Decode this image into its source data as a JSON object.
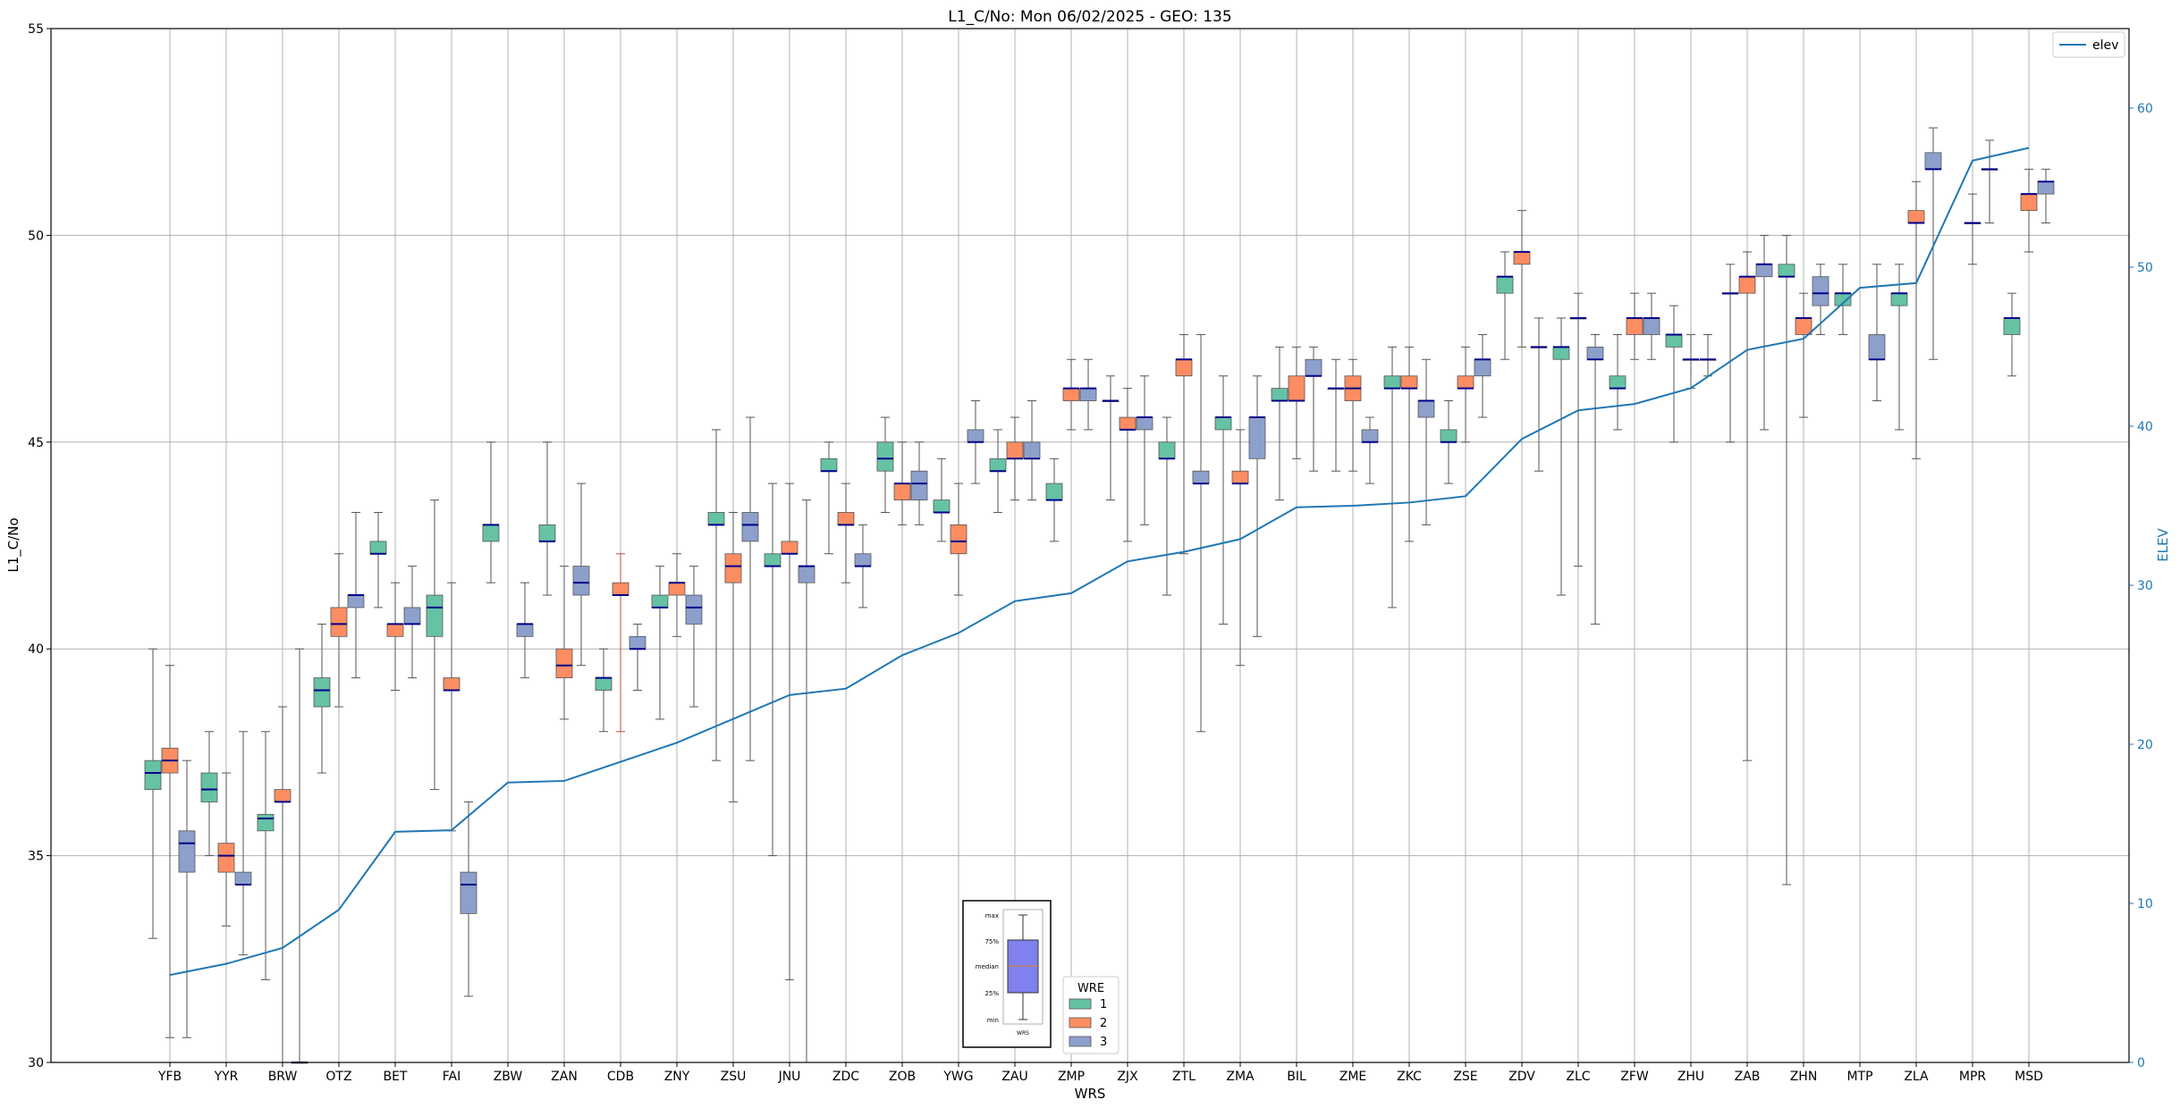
{
  "colors": {
    "wre1": "#66c2a5",
    "wre2": "#fc8d62",
    "wre3": "#8da0cb",
    "elev": "#1f77b4",
    "median": "#00008b",
    "grid": "#b0b0b0",
    "whisker": "#555555",
    "legend_box_fill": "#8080ee"
  },
  "chart_data": {
    "type": "box",
    "title": "L1_C/No: Mon 06/02/2025 - GEO: 135",
    "xlabel": "WRS",
    "ylabel": "L1_C/No",
    "y2label": "ELEV",
    "ylim": [
      30,
      55
    ],
    "y2lim": [
      0,
      65
    ],
    "yticks": [
      30,
      35,
      40,
      45,
      50,
      55
    ],
    "y2ticks": [
      0,
      10,
      20,
      30,
      40,
      50,
      60
    ],
    "grid": true,
    "categories": [
      "YFB",
      "YYR",
      "BRW",
      "OTZ",
      "BET",
      "FAI",
      "ZBW",
      "ZAN",
      "CDB",
      "ZNY",
      "ZSU",
      "JNU",
      "ZDC",
      "ZOB",
      "YWG",
      "ZAU",
      "ZMP",
      "ZJX",
      "ZTL",
      "ZMA",
      "BIL",
      "ZME",
      "ZKC",
      "ZSE",
      "ZDV",
      "ZLC",
      "ZFW",
      "ZHU",
      "ZAB",
      "ZHN",
      "MTP",
      "ZLA",
      "MPR",
      "MSD"
    ],
    "series": [
      {
        "name": "1",
        "boxes": [
          {
            "cat": "YFB",
            "min": 33,
            "q1": 36.6,
            "med": 37,
            "q3": 37.3,
            "max": 40
          },
          {
            "cat": "YYR",
            "min": 35,
            "q1": 36.3,
            "med": 36.6,
            "q3": 37,
            "max": 38
          },
          {
            "cat": "BRW",
            "min": 32,
            "q1": 35.6,
            "med": 35.9,
            "q3": 36,
            "max": 38
          },
          {
            "cat": "OTZ",
            "min": 37,
            "q1": 38.6,
            "med": 39,
            "q3": 39.3,
            "max": 40.6
          },
          {
            "cat": "BET",
            "min": 41,
            "q1": 42.3,
            "med": 42.3,
            "q3": 42.6,
            "max": 43.3
          },
          {
            "cat": "FAI",
            "min": 36.6,
            "q1": 40.3,
            "med": 41,
            "q3": 41.3,
            "max": 43.6
          },
          {
            "cat": "ZBW",
            "min": 41.6,
            "q1": 42.6,
            "med": 43,
            "q3": 43,
            "max": 45
          },
          {
            "cat": "ZAN",
            "min": 41.3,
            "q1": 42.6,
            "med": 42.6,
            "q3": 43,
            "max": 45
          },
          {
            "cat": "CDB",
            "min": 38,
            "q1": 39,
            "med": 39.3,
            "q3": 39.3,
            "max": 40
          },
          {
            "cat": "ZNY",
            "min": 38.3,
            "q1": 41,
            "med": 41,
            "q3": 41.3,
            "max": 42
          },
          {
            "cat": "ZSU",
            "min": 37.3,
            "q1": 43,
            "med": 43,
            "q3": 43.3,
            "max": 45.3
          },
          {
            "cat": "JNU",
            "min": 35,
            "q1": 42,
            "med": 42,
            "q3": 42.3,
            "max": 44
          },
          {
            "cat": "ZDC",
            "min": 42.3,
            "q1": 44.3,
            "med": 44.3,
            "q3": 44.6,
            "max": 45
          },
          {
            "cat": "ZOB",
            "min": 43.3,
            "q1": 44.3,
            "med": 44.6,
            "q3": 45,
            "max": 45.6
          },
          {
            "cat": "YWG",
            "min": 42.6,
            "q1": 43.3,
            "med": 43.3,
            "q3": 43.6,
            "max": 44.6
          },
          {
            "cat": "ZAU",
            "min": 43.3,
            "q1": 44.3,
            "med": 44.3,
            "q3": 44.6,
            "max": 45.3
          },
          {
            "cat": "ZMP",
            "min": 42.6,
            "q1": 43.6,
            "med": 43.6,
            "q3": 44,
            "max": 44.6
          },
          {
            "cat": "ZJX",
            "min": 43.6,
            "q1": 46,
            "med": 46,
            "q3": 46,
            "max": 46.6
          },
          {
            "cat": "ZTL",
            "min": 41.3,
            "q1": 44.6,
            "med": 44.6,
            "q3": 45,
            "max": 45.6
          },
          {
            "cat": "ZMA",
            "min": 40.6,
            "q1": 45.3,
            "med": 45.6,
            "q3": 45.6,
            "max": 46.6
          },
          {
            "cat": "BIL",
            "min": 43.6,
            "q1": 46,
            "med": 46,
            "q3": 46.3,
            "max": 47.3
          },
          {
            "cat": "ZME",
            "min": 44.3,
            "q1": 46.3,
            "med": 46.3,
            "q3": 46.3,
            "max": 47
          },
          {
            "cat": "ZKC",
            "min": 41,
            "q1": 46.3,
            "med": 46.3,
            "q3": 46.6,
            "max": 47.3
          },
          {
            "cat": "ZSE",
            "min": 44,
            "q1": 45,
            "med": 45,
            "q3": 45.3,
            "max": 46
          },
          {
            "cat": "ZDV",
            "min": 47,
            "q1": 48.6,
            "med": 49,
            "q3": 49,
            "max": 49.6
          },
          {
            "cat": "ZLC",
            "min": 41.3,
            "q1": 47,
            "med": 47.3,
            "q3": 47.3,
            "max": 48
          },
          {
            "cat": "ZFW",
            "min": 45.3,
            "q1": 46.3,
            "med": 46.3,
            "q3": 46.6,
            "max": 47.6
          },
          {
            "cat": "ZHU",
            "min": 45,
            "q1": 47.3,
            "med": 47.6,
            "q3": 47.6,
            "max": 48.3
          },
          {
            "cat": "ZAB",
            "min": 45,
            "q1": 48.6,
            "med": 48.6,
            "q3": 48.6,
            "max": 49.3
          },
          {
            "cat": "ZHN",
            "min": 34.3,
            "q1": 49,
            "med": 49,
            "q3": 49.3,
            "max": 50
          },
          {
            "cat": "MTP",
            "min": 47.6,
            "q1": 48.3,
            "med": 48.6,
            "q3": 48.6,
            "max": 49.3
          },
          {
            "cat": "ZLA",
            "min": 45.3,
            "q1": 48.3,
            "med": 48.6,
            "q3": 48.6,
            "max": 49.3
          },
          {
            "cat": "MSD",
            "min": 46.6,
            "q1": 47.6,
            "med": 48,
            "q3": 48,
            "max": 48.6
          }
        ]
      },
      {
        "name": "2",
        "boxes": [
          {
            "cat": "YFB",
            "min": 30.6,
            "q1": 37,
            "med": 37.3,
            "q3": 37.6,
            "max": 39.6
          },
          {
            "cat": "YYR",
            "min": 33.3,
            "q1": 34.6,
            "med": 35,
            "q3": 35.3,
            "max": 37
          },
          {
            "cat": "BRW",
            "min": 30,
            "q1": 36.3,
            "med": 36.3,
            "q3": 36.6,
            "max": 38.6
          },
          {
            "cat": "OTZ",
            "min": 38.6,
            "q1": 40.3,
            "med": 40.6,
            "q3": 41,
            "max": 42.3
          },
          {
            "cat": "BET",
            "min": 39,
            "q1": 40.3,
            "med": 40.6,
            "q3": 40.6,
            "max": 41.6
          },
          {
            "cat": "FAI",
            "min": 35.6,
            "q1": 39,
            "med": 39,
            "q3": 39.3,
            "max": 41.6
          },
          {
            "cat": "ZAN",
            "min": 38.3,
            "q1": 39.3,
            "med": 39.6,
            "q3": 40,
            "max": 42
          },
          {
            "cat": "CDB",
            "min": 38,
            "q1": 41.3,
            "med": 41.3,
            "q3": 41.6,
            "max": 42.3
          },
          {
            "cat": "ZNY",
            "min": 40.3,
            "q1": 41.3,
            "med": 41.6,
            "q3": 41.6,
            "max": 42.3
          },
          {
            "cat": "ZSU",
            "min": 36.3,
            "q1": 41.6,
            "med": 42,
            "q3": 42.3,
            "max": 43.3
          },
          {
            "cat": "JNU",
            "min": 32,
            "q1": 42.3,
            "med": 42.3,
            "q3": 42.6,
            "max": 44
          },
          {
            "cat": "ZDC",
            "min": 41.6,
            "q1": 43,
            "med": 43,
            "q3": 43.3,
            "max": 44
          },
          {
            "cat": "ZOB",
            "min": 43,
            "q1": 43.6,
            "med": 44,
            "q3": 44,
            "max": 45
          },
          {
            "cat": "YWG",
            "min": 41.3,
            "q1": 42.3,
            "med": 42.6,
            "q3": 43,
            "max": 44
          },
          {
            "cat": "ZAU",
            "min": 43.6,
            "q1": 44.6,
            "med": 44.6,
            "q3": 45,
            "max": 45.6
          },
          {
            "cat": "ZMP",
            "min": 45.3,
            "q1": 46,
            "med": 46.3,
            "q3": 46.3,
            "max": 47
          },
          {
            "cat": "ZJX",
            "min": 42.6,
            "q1": 45.3,
            "med": 45.3,
            "q3": 45.6,
            "max": 46.3
          },
          {
            "cat": "ZTL",
            "min": 42.3,
            "q1": 46.6,
            "med": 47,
            "q3": 47,
            "max": 47.6
          },
          {
            "cat": "ZMA",
            "min": 39.6,
            "q1": 44,
            "med": 44,
            "q3": 44.3,
            "max": 45.3
          },
          {
            "cat": "BIL",
            "min": 44.6,
            "q1": 46,
            "med": 46,
            "q3": 46.6,
            "max": 47.3
          },
          {
            "cat": "ZME",
            "min": 44.3,
            "q1": 46,
            "med": 46.3,
            "q3": 46.6,
            "max": 47
          },
          {
            "cat": "ZKC",
            "min": 42.6,
            "q1": 46.3,
            "med": 46.3,
            "q3": 46.6,
            "max": 47.3
          },
          {
            "cat": "ZSE",
            "min": 45,
            "q1": 46.3,
            "med": 46.3,
            "q3": 46.6,
            "max": 47.3
          },
          {
            "cat": "ZDV",
            "min": 47.3,
            "q1": 49.3,
            "med": 49.6,
            "q3": 49.6,
            "max": 50.6
          },
          {
            "cat": "ZLC",
            "min": 42,
            "q1": 48,
            "med": 48,
            "q3": 48,
            "max": 48.6
          },
          {
            "cat": "ZFW",
            "min": 47,
            "q1": 47.6,
            "med": 48,
            "q3": 48,
            "max": 48.6
          },
          {
            "cat": "ZHU",
            "min": 46.3,
            "q1": 47,
            "med": 47,
            "q3": 47,
            "max": 47.6
          },
          {
            "cat": "ZAB",
            "min": 37.3,
            "q1": 48.6,
            "med": 49,
            "q3": 49,
            "max": 49.6
          },
          {
            "cat": "ZHN",
            "min": 45.6,
            "q1": 47.6,
            "med": 48,
            "q3": 48,
            "max": 48.6
          },
          {
            "cat": "ZLA",
            "min": 44.6,
            "q1": 50.3,
            "med": 50.3,
            "q3": 50.6,
            "max": 51.3
          },
          {
            "cat": "MPR",
            "min": 49.3,
            "q1": 50.3,
            "med": 50.3,
            "q3": 50.3,
            "max": 51
          },
          {
            "cat": "MSD",
            "min": 49.6,
            "q1": 50.6,
            "med": 51,
            "q3": 51,
            "max": 51.6
          }
        ]
      },
      {
        "name": "3",
        "boxes": [
          {
            "cat": "YFB",
            "min": 30.6,
            "q1": 34.6,
            "med": 35.3,
            "q3": 35.6,
            "max": 37.3
          },
          {
            "cat": "YYR",
            "min": 32.6,
            "q1": 34.3,
            "med": 34.3,
            "q3": 34.6,
            "max": 38
          },
          {
            "cat": "BRW",
            "min": 30,
            "q1": 30,
            "med": 30,
            "q3": 30,
            "max": 40
          },
          {
            "cat": "OTZ",
            "min": 39.3,
            "q1": 41,
            "med": 41.3,
            "q3": 41.3,
            "max": 43.3
          },
          {
            "cat": "BET",
            "min": 39.3,
            "q1": 40.6,
            "med": 40.6,
            "q3": 41,
            "max": 42
          },
          {
            "cat": "FAI",
            "min": 31.6,
            "q1": 33.6,
            "med": 34.3,
            "q3": 34.6,
            "max": 36.3
          },
          {
            "cat": "ZBW",
            "min": 39.3,
            "q1": 40.3,
            "med": 40.6,
            "q3": 40.6,
            "max": 41.6
          },
          {
            "cat": "ZAN",
            "min": 39.6,
            "q1": 41.3,
            "med": 41.6,
            "q3": 42,
            "max": 44
          },
          {
            "cat": "CDB",
            "min": 39,
            "q1": 40,
            "med": 40,
            "q3": 40.3,
            "max": 40.6
          },
          {
            "cat": "ZNY",
            "min": 38.6,
            "q1": 40.6,
            "med": 41,
            "q3": 41.3,
            "max": 42
          },
          {
            "cat": "ZSU",
            "min": 37.3,
            "q1": 42.6,
            "med": 43,
            "q3": 43.3,
            "max": 45.6
          },
          {
            "cat": "JNU",
            "min": 30,
            "q1": 41.6,
            "med": 42,
            "q3": 42,
            "max": 43.6
          },
          {
            "cat": "ZDC",
            "min": 41,
            "q1": 42,
            "med": 42,
            "q3": 42.3,
            "max": 43
          },
          {
            "cat": "ZOB",
            "min": 43,
            "q1": 43.6,
            "med": 44,
            "q3": 44.3,
            "max": 45
          },
          {
            "cat": "YWG",
            "min": 44,
            "q1": 45,
            "med": 45,
            "q3": 45.3,
            "max": 46
          },
          {
            "cat": "ZAU",
            "min": 43.6,
            "q1": 44.6,
            "med": 44.6,
            "q3": 45,
            "max": 46
          },
          {
            "cat": "ZMP",
            "min": 45.3,
            "q1": 46,
            "med": 46.3,
            "q3": 46.3,
            "max": 47
          },
          {
            "cat": "ZJX",
            "min": 43,
            "q1": 45.3,
            "med": 45.6,
            "q3": 45.6,
            "max": 46.6
          },
          {
            "cat": "ZTL",
            "min": 38,
            "q1": 44,
            "med": 44,
            "q3": 44.3,
            "max": 47.6
          },
          {
            "cat": "ZMA",
            "min": 40.3,
            "q1": 44.6,
            "med": 45.6,
            "q3": 45.6,
            "max": 46.6
          },
          {
            "cat": "BIL",
            "min": 44.3,
            "q1": 46.6,
            "med": 46.6,
            "q3": 47,
            "max": 47.3
          },
          {
            "cat": "ZME",
            "min": 44,
            "q1": 45,
            "med": 45,
            "q3": 45.3,
            "max": 45.6
          },
          {
            "cat": "ZKC",
            "min": 43,
            "q1": 45.6,
            "med": 46,
            "q3": 46,
            "max": 47
          },
          {
            "cat": "ZSE",
            "min": 45.6,
            "q1": 46.6,
            "med": 47,
            "q3": 47,
            "max": 47.6
          },
          {
            "cat": "ZDV",
            "min": 44.3,
            "q1": 47.3,
            "med": 47.3,
            "q3": 47.3,
            "max": 48
          },
          {
            "cat": "ZLC",
            "min": 40.6,
            "q1": 47,
            "med": 47,
            "q3": 47.3,
            "max": 47.6
          },
          {
            "cat": "ZFW",
            "min": 47,
            "q1": 47.6,
            "med": 48,
            "q3": 48,
            "max": 48.6
          },
          {
            "cat": "ZHU",
            "min": 46.6,
            "q1": 47,
            "med": 47,
            "q3": 47,
            "max": 47.6
          },
          {
            "cat": "ZAB",
            "min": 45.3,
            "q1": 49,
            "med": 49.3,
            "q3": 49.3,
            "max": 50
          },
          {
            "cat": "ZHN",
            "min": 47.6,
            "q1": 48.3,
            "med": 48.6,
            "q3": 49,
            "max": 49.3
          },
          {
            "cat": "MTP",
            "min": 46,
            "q1": 47,
            "med": 47,
            "q3": 47.6,
            "max": 49.3
          },
          {
            "cat": "ZLA",
            "min": 47,
            "q1": 51.6,
            "med": 51.6,
            "q3": 52,
            "max": 52.6
          },
          {
            "cat": "MPR",
            "min": 50.3,
            "q1": 51.6,
            "med": 51.6,
            "q3": 51.6,
            "max": 52.3
          },
          {
            "cat": "MSD",
            "min": 50.3,
            "q1": 51,
            "med": 51.3,
            "q3": 51.3,
            "max": 51.6
          }
        ]
      }
    ],
    "elev_line": {
      "name": "elev",
      "values": [
        5.5,
        6.2,
        7.2,
        9.6,
        14.5,
        14.6,
        17.6,
        17.7,
        18.9,
        20.1,
        21.6,
        23.1,
        23.5,
        25.6,
        27.0,
        29.0,
        29.5,
        31.5,
        32.1,
        32.9,
        34.9,
        35.0,
        35.2,
        35.6,
        39.2,
        41.0,
        41.4,
        42.4,
        44.8,
        45.5,
        48.7,
        49.0,
        56.7,
        57.5
      ]
    },
    "legend_elev": {
      "label": "elev",
      "position": "top-right"
    },
    "legend_wre": {
      "title": "WRE",
      "labels": [
        "1",
        "2",
        "3"
      ],
      "position": "bottom-center"
    },
    "inset_key": {
      "labels": [
        "max",
        "75%",
        "median",
        "25%",
        "min"
      ],
      "xlabel": "WRS"
    }
  }
}
